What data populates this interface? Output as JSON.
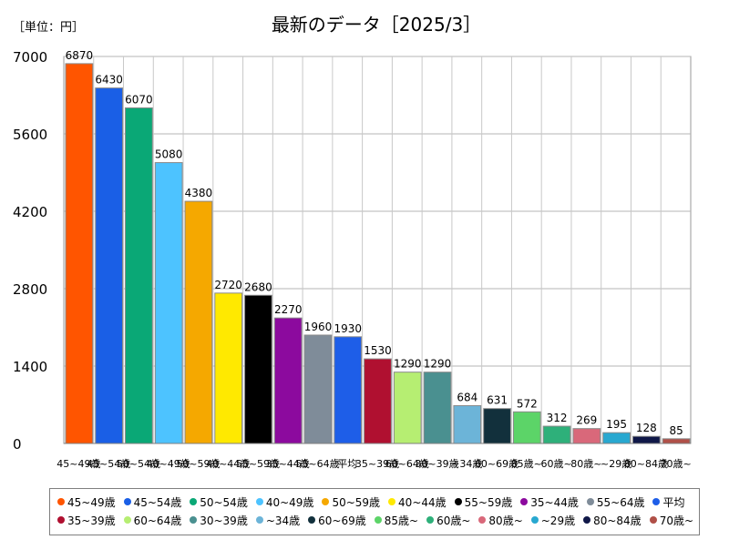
{
  "unit_label": "［単位：円］",
  "chart_data": {
    "type": "bar",
    "title": "最新のデータ［2025/3］",
    "ylim": [
      0,
      7000
    ],
    "yticks": [
      "0",
      "1400",
      "2800",
      "4200",
      "5600",
      "7000"
    ],
    "grid": true,
    "legend_position": "bottom",
    "categories": [
      "45~49歳",
      "45~54歳",
      "50~54歳",
      "40~49歳",
      "50~59歳",
      "40~44歳",
      "55~59歳",
      "35~44歳",
      "55~64歳",
      "平均",
      "35~39歳",
      "60~64歳",
      "30~39歳",
      "~34歳",
      "60~69歳",
      "85歳~",
      "60歳~",
      "80歳~",
      "~29歳",
      "80~84歳",
      "70歳~"
    ],
    "xtick_labels": [
      "45~49歳",
      "45~54歳",
      "50~54歳",
      "40~49歳",
      "50~59歳",
      "40~44歳",
      "55~59歳",
      "35~44歳",
      "55~64歳",
      "平均",
      "35~39歳",
      "60~64歳",
      "30~39歳",
      "~34歳",
      "60~69歳",
      "85歳~",
      "60歳~",
      "80歳~",
      "~29歳",
      "80~84歳",
      "70歳~"
    ],
    "values": [
      6870,
      6430,
      6070,
      5080,
      4380,
      2720,
      2680,
      2270,
      1960,
      1930,
      1530,
      1290,
      1290,
      684,
      631,
      572,
      312,
      269,
      195,
      128,
      85
    ],
    "data_labels": [
      "6870",
      "6430",
      "6070",
      "5080",
      "4380",
      "2720",
      "2680",
      "2270",
      "1960",
      "1930",
      "1530",
      "1290",
      "1290",
      "684",
      "631",
      "572",
      "312",
      "269",
      "195",
      "128",
      "85"
    ],
    "colors": [
      "#ff5500",
      "#1a5fe6",
      "#0aa876",
      "#4dc3ff",
      "#f5a800",
      "#ffe900",
      "#000000",
      "#8c0a9e",
      "#7f8c99",
      "#1e5ee8",
      "#b01030",
      "#b6ee72",
      "#4a9090",
      "#6cb4d8",
      "#12303c",
      "#5cd468",
      "#2eb07a",
      "#d9687a",
      "#28a8d0",
      "#101848",
      "#b05048"
    ],
    "legend": [
      "45~49歳",
      "45~54歳",
      "50~54歳",
      "40~49歳",
      "50~59歳",
      "40~44歳",
      "55~59歳",
      "35~44歳",
      "55~64歳",
      "平均",
      "35~39歳",
      "60~64歳",
      "30~39歳",
      "~34歳",
      "60~69歳",
      "85歳~",
      "60歳~",
      "80歳~",
      "~29歳",
      "80~84歳",
      "70歳~"
    ]
  }
}
